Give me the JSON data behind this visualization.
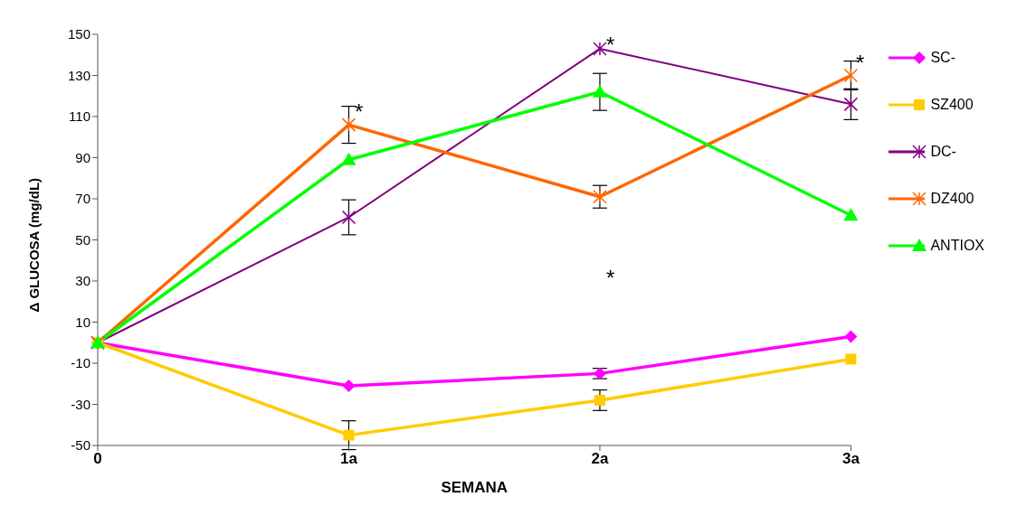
{
  "chart_data": {
    "type": "line",
    "xlabel": "SEMANA",
    "ylabel": "Δ GLUCOSA (mg/dL)",
    "categories": [
      "0",
      "1a",
      "2a",
      "3a"
    ],
    "series": [
      {
        "name": "SC-",
        "color": "#ff00ff",
        "marker": "diamond",
        "values": [
          0,
          -21,
          -15,
          3
        ],
        "errors": [
          null,
          null,
          2.5,
          null
        ]
      },
      {
        "name": "SZ400",
        "color": "#ffcc00",
        "marker": "square",
        "values": [
          0,
          -45,
          -28,
          -8
        ],
        "errors": [
          null,
          7,
          5,
          null
        ]
      },
      {
        "name": "DC-",
        "color": "#800080",
        "marker": "cross",
        "values": [
          0,
          61,
          143,
          116
        ],
        "errors": [
          null,
          8.5,
          null,
          7.5
        ]
      },
      {
        "name": "DZ400",
        "color": "#ff6600",
        "marker": "cross",
        "values": [
          0,
          106,
          71,
          130
        ],
        "errors": [
          null,
          9,
          5.5,
          7
        ]
      },
      {
        "name": "ANTIOX",
        "color": "#00ff00",
        "marker": "triangle",
        "values": [
          0,
          89,
          122,
          62
        ],
        "errors": [
          null,
          null,
          9,
          null
        ]
      }
    ],
    "ylim": [
      -50,
      150
    ],
    "yticks": [
      -50,
      -30,
      -10,
      10,
      30,
      50,
      70,
      90,
      110,
      130,
      150
    ],
    "grid": false,
    "legend": "right",
    "annotations": [
      "*",
      "*",
      "*",
      "*"
    ]
  }
}
